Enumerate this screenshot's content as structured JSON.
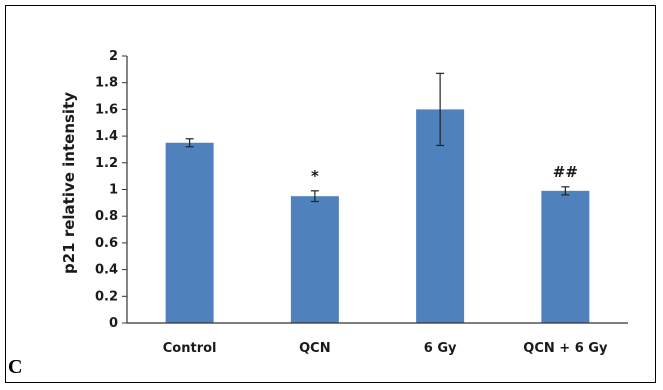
{
  "chart_data": {
    "type": "bar",
    "title": "",
    "xlabel": "",
    "ylabel": "p21 relative intensity",
    "categories": [
      "Control",
      "QCN",
      "6 Gy",
      "QCN + 6 Gy"
    ],
    "values": [
      1.35,
      0.95,
      1.6,
      0.99
    ],
    "errors": [
      0.03,
      0.04,
      0.27,
      0.03
    ],
    "annotations": [
      "",
      "*",
      "",
      "##"
    ],
    "ylim": [
      0,
      2
    ],
    "yticks": [
      "0",
      "0.2",
      "0.4",
      "0.6",
      "0.8",
      "1",
      "1.2",
      "1.4",
      "1.6",
      "1.8",
      "2"
    ],
    "grid": false,
    "legend": "none",
    "bar_color": "#4f81bd"
  },
  "panel_label": "C"
}
